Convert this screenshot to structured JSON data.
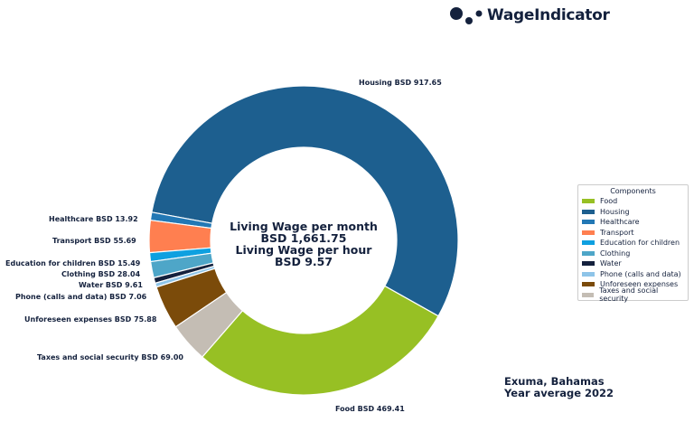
{
  "logo": {
    "text": "WageIndicator"
  },
  "center": {
    "line1": "Living Wage per month",
    "line2": "BSD 1,661.75",
    "line3": "Living Wage per hour",
    "line4": "BSD 9.57"
  },
  "location": {
    "line1": "Exuma, Bahamas",
    "line2": "Year average 2022"
  },
  "chart_data": {
    "type": "pie",
    "donut": true,
    "currency": "BSD",
    "categories": [
      "Food",
      "Housing",
      "Healthcare",
      "Transport",
      "Education for children",
      "Clothing",
      "Water",
      "Phone (calls and data)",
      "Unforeseen expenses",
      "Taxes and social security"
    ],
    "values": [
      469.41,
      917.65,
      13.92,
      55.69,
      15.49,
      28.04,
      9.61,
      7.06,
      75.88,
      69.0
    ],
    "colors": [
      "#97c024",
      "#1d5f8f",
      "#2278b5",
      "#ff7f50",
      "#0ea0e0",
      "#4ea6c8",
      "#14213d",
      "#8ec4e8",
      "#7b4b0a",
      "#c4bdb4"
    ],
    "data_labels": [
      "Food BSD 469.41",
      "Housing BSD 917.65",
      "Healthcare BSD 13.92",
      "Transport BSD 55.69",
      "Education for children BSD 15.49",
      "Clothing BSD 28.04",
      "Water BSD 9.61",
      "Phone (calls and data) BSD 7.06",
      "Unforeseen expenses BSD 75.88",
      "Taxes and social security BSD 69.00"
    ],
    "legend": {
      "title": "Components",
      "placement": "right"
    }
  }
}
